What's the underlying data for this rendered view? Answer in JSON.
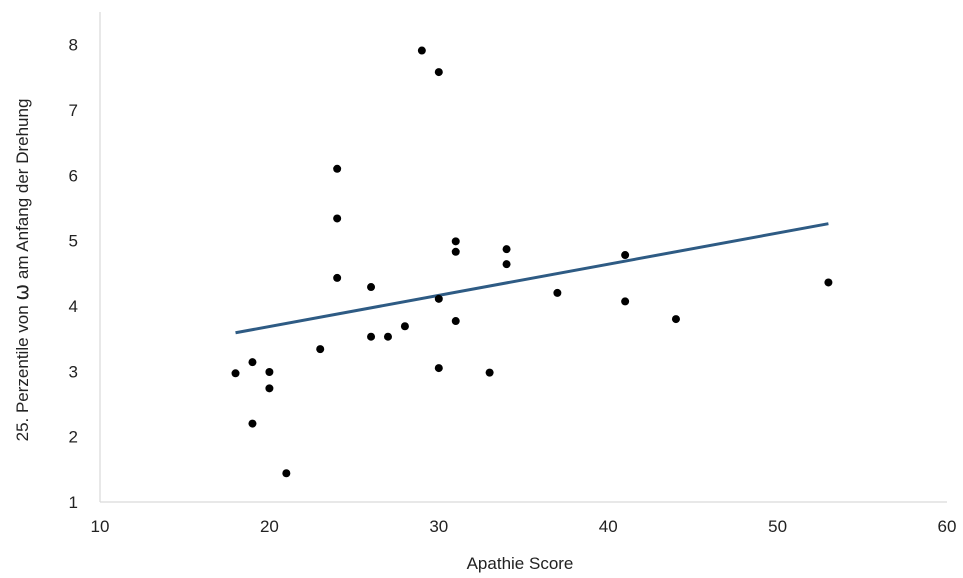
{
  "chart_data": {
    "type": "scatter",
    "xlabel": "Apathie Score",
    "ylabel_prefix": "25. Perzentile von ",
    "ylabel_symbol": "ω",
    "ylabel_suffix": " am Anfang der Drehung",
    "xlim": [
      10,
      60
    ],
    "ylim": [
      1,
      8.5
    ],
    "x_ticks": [
      10,
      20,
      30,
      40,
      50,
      60
    ],
    "y_ticks": [
      1,
      2,
      3,
      4,
      5,
      6,
      7,
      8
    ],
    "grid": false,
    "legend": "none",
    "points": [
      {
        "x": 18,
        "y": 2.97
      },
      {
        "x": 19,
        "y": 3.14
      },
      {
        "x": 19,
        "y": 2.2
      },
      {
        "x": 20,
        "y": 2.99
      },
      {
        "x": 20,
        "y": 2.74
      },
      {
        "x": 21,
        "y": 1.44
      },
      {
        "x": 23,
        "y": 3.34
      },
      {
        "x": 24,
        "y": 6.1
      },
      {
        "x": 24,
        "y": 5.34
      },
      {
        "x": 24,
        "y": 4.43
      },
      {
        "x": 26,
        "y": 4.29
      },
      {
        "x": 26,
        "y": 3.53
      },
      {
        "x": 27,
        "y": 3.53
      },
      {
        "x": 28,
        "y": 3.69
      },
      {
        "x": 29,
        "y": 7.91
      },
      {
        "x": 30,
        "y": 7.58
      },
      {
        "x": 30,
        "y": 4.11
      },
      {
        "x": 30,
        "y": 3.05
      },
      {
        "x": 31,
        "y": 4.99
      },
      {
        "x": 31,
        "y": 4.83
      },
      {
        "x": 31,
        "y": 3.77
      },
      {
        "x": 33,
        "y": 2.98
      },
      {
        "x": 34,
        "y": 4.87
      },
      {
        "x": 34,
        "y": 4.64
      },
      {
        "x": 37,
        "y": 4.2
      },
      {
        "x": 41,
        "y": 4.78
      },
      {
        "x": 41,
        "y": 4.07
      },
      {
        "x": 44,
        "y": 3.8
      },
      {
        "x": 53,
        "y": 4.36
      }
    ],
    "trendline": {
      "x": [
        18,
        53
      ],
      "y": [
        3.59,
        5.26
      ]
    },
    "colors": {
      "points": "#000000",
      "trendline": "#2e5b84",
      "axis": "#d9d9d9"
    }
  }
}
